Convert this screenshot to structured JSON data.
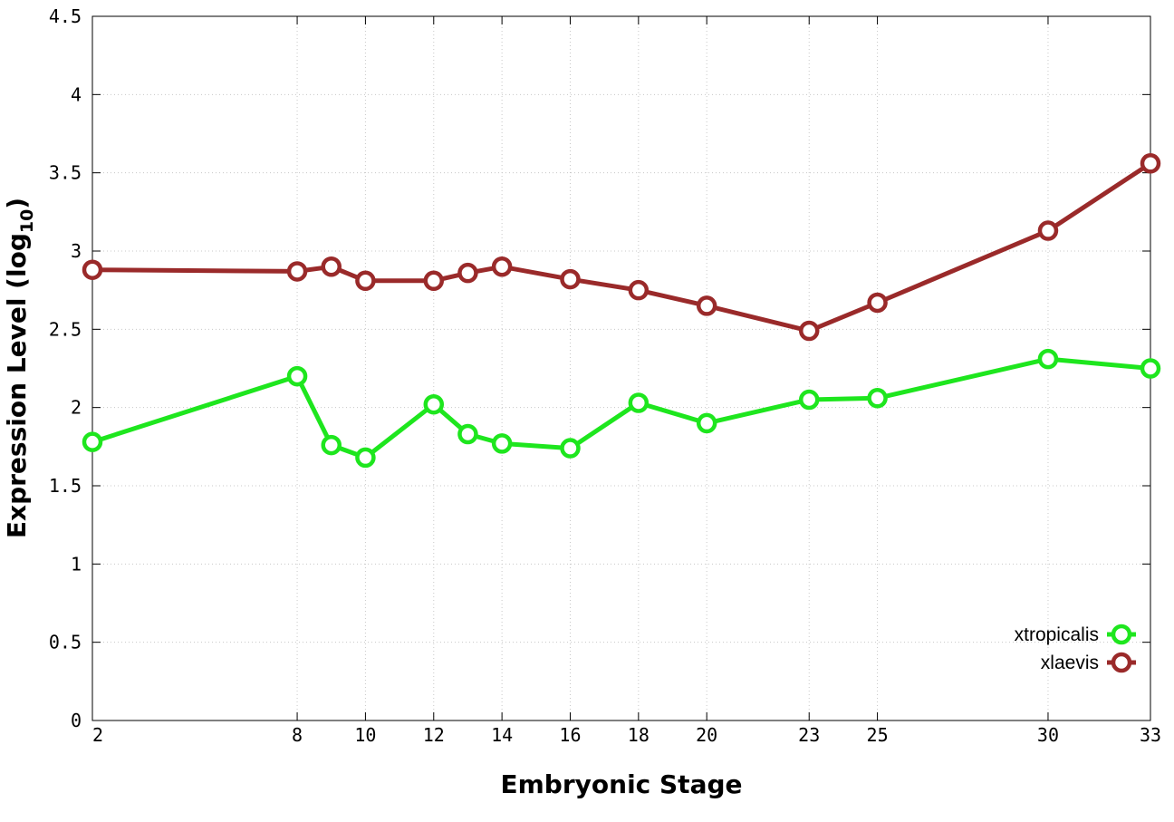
{
  "chart_data": {
    "type": "line",
    "xlabel": "Embryonic Stage",
    "ylabel_main": "Expression Level (log",
    "ylabel_sub": "10",
    "ylabel_close": ")",
    "xlim": [
      2,
      33
    ],
    "ylim": [
      0,
      4.5
    ],
    "x_ticks": [
      2,
      8,
      10,
      12,
      14,
      16,
      18,
      20,
      23,
      25,
      30,
      33
    ],
    "x_tick_labels": [
      "2",
      "8",
      "10",
      "12",
      "14",
      "16",
      "18",
      "20",
      "23",
      "25",
      "30",
      "33"
    ],
    "y_ticks": [
      0,
      0.5,
      1,
      1.5,
      2,
      2.5,
      3,
      3.5,
      4,
      4.5
    ],
    "y_tick_labels": [
      "0",
      "0.5",
      "1",
      "1.5",
      "2",
      "2.5",
      "3",
      "3.5",
      "4",
      "4.5"
    ],
    "grid": true,
    "legend_position": "bottom-right",
    "series": [
      {
        "name": "xtropicalis",
        "color": "#1ee61e",
        "x": [
          2,
          8,
          9,
          10,
          12,
          13,
          14,
          16,
          18,
          20,
          23,
          25,
          30,
          33
        ],
        "y": [
          1.78,
          2.2,
          1.76,
          1.68,
          2.02,
          1.83,
          1.77,
          1.74,
          2.03,
          1.9,
          2.05,
          2.06,
          2.31,
          2.25
        ]
      },
      {
        "name": "xlaevis",
        "color": "#9a2a2a",
        "x": [
          2,
          8,
          9,
          10,
          12,
          13,
          14,
          16,
          18,
          20,
          23,
          25,
          30,
          33
        ],
        "y": [
          2.88,
          2.87,
          2.9,
          2.81,
          2.81,
          2.86,
          2.9,
          2.82,
          2.75,
          2.65,
          2.49,
          2.67,
          3.13,
          3.56
        ]
      }
    ]
  }
}
